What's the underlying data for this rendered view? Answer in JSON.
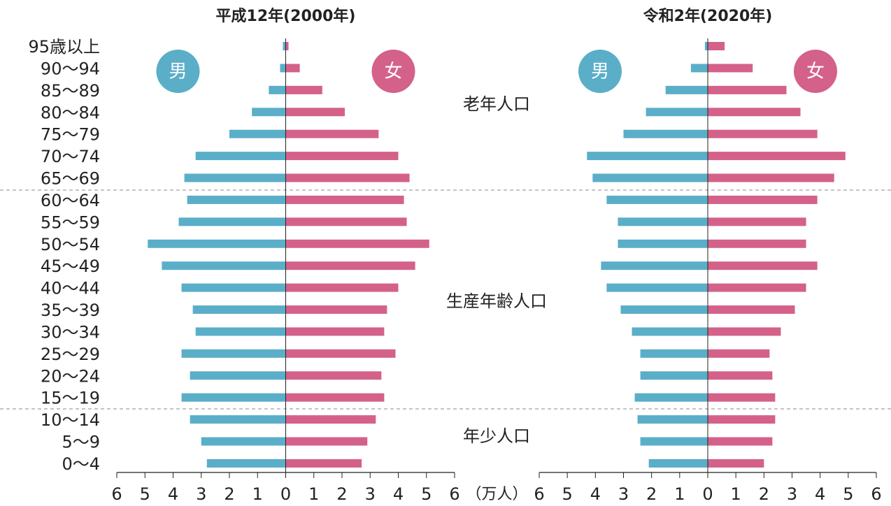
{
  "chart_data": [
    {
      "type": "bar",
      "title": "平成12年(2000年)",
      "x_label": "（万人）",
      "categories": [
        "95歳以上",
        "90～94",
        "85～89",
        "80～84",
        "75～79",
        "70～74",
        "65～69",
        "60～64",
        "55～59",
        "50～54",
        "45～49",
        "40～44",
        "35～39",
        "30～34",
        "25～29",
        "20～24",
        "15～19",
        "10～14",
        "5～9",
        "0～4"
      ],
      "series": [
        {
          "name": "男",
          "color": "#5aaec8",
          "values": [
            -0.1,
            -0.2,
            -0.6,
            -1.2,
            -2.0,
            -3.2,
            -3.6,
            -3.5,
            -3.8,
            -4.9,
            -4.4,
            -3.7,
            -3.3,
            -3.2,
            -3.7,
            -3.4,
            -3.7,
            -3.4,
            -3.0,
            -2.8
          ]
        },
        {
          "name": "女",
          "color": "#d4618a",
          "values": [
            0.1,
            0.5,
            1.3,
            2.1,
            3.3,
            4.0,
            4.4,
            4.2,
            4.3,
            5.1,
            4.6,
            4.0,
            3.6,
            3.5,
            3.9,
            3.4,
            3.5,
            3.2,
            2.9,
            2.7
          ]
        }
      ],
      "xlim": [
        -6,
        6
      ],
      "xticks": [
        {
          "value": -6,
          "label": "6"
        },
        {
          "value": -5,
          "label": "5"
        },
        {
          "value": -4,
          "label": "4"
        },
        {
          "value": -3,
          "label": "3"
        },
        {
          "value": -2,
          "label": "2"
        },
        {
          "value": -1,
          "label": "1"
        },
        0,
        1,
        2,
        3,
        4,
        5,
        6
      ]
    },
    {
      "type": "bar",
      "title": "令和2年(2020年)",
      "series": [
        {
          "name": "男",
          "color": "#5aaec8",
          "values": [
            -0.1,
            -0.6,
            -1.5,
            -2.2,
            -3.0,
            -4.3,
            -4.1,
            -3.6,
            -3.2,
            -3.2,
            -3.8,
            -3.6,
            -3.1,
            -2.7,
            -2.4,
            -2.4,
            -2.6,
            -2.5,
            -2.4,
            -2.1
          ]
        },
        {
          "name": "女",
          "color": "#d4618a",
          "values": [
            0.6,
            1.6,
            2.8,
            3.3,
            3.9,
            4.9,
            4.5,
            3.9,
            3.5,
            3.5,
            3.9,
            3.5,
            3.1,
            2.6,
            2.2,
            2.3,
            2.4,
            2.4,
            2.3,
            2.0
          ]
        }
      ],
      "xlim": [
        -6,
        6
      ],
      "xticks": [
        {
          "value": -6,
          "label": "6"
        },
        {
          "value": -5,
          "label": "5"
        },
        {
          "value": -4,
          "label": "4"
        },
        {
          "value": -3,
          "label": "3"
        },
        {
          "value": -2,
          "label": "2"
        },
        {
          "value": -1,
          "label": "1"
        },
        0,
        1,
        2,
        3,
        4,
        5,
        6
      ]
    }
  ],
  "annotations": [
    "老年人口",
    "生産年齢人口",
    "年少人口"
  ]
}
